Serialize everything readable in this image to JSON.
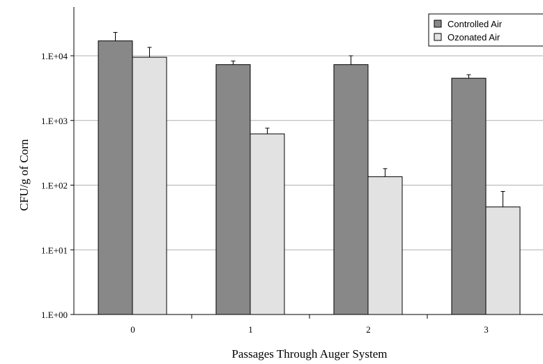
{
  "chart_data": {
    "type": "bar",
    "title": "",
    "xlabel": "Passages Through Auger System",
    "ylabel": "CFU/g of Corn",
    "yscale": "log",
    "ylim": [
      1,
      100000
    ],
    "ytick_labels": [
      "1.E+00",
      "1.E+01",
      "1.E+02",
      "1.E+03",
      "1.E+04"
    ],
    "categories": [
      "0",
      "1",
      "2",
      "3"
    ],
    "grid": true,
    "legend_position": "top-right",
    "series": [
      {
        "name": "Controlled Air",
        "color": "#888888",
        "values": [
          17000,
          7300,
          7300,
          4500
        ],
        "error_upper": [
          23000,
          8300,
          10000,
          5100
        ]
      },
      {
        "name": "Ozonated Air",
        "color": "#e2e2e2",
        "values": [
          9500,
          620,
          135,
          46
        ],
        "error_upper": [
          13500,
          760,
          180,
          80
        ]
      }
    ]
  }
}
